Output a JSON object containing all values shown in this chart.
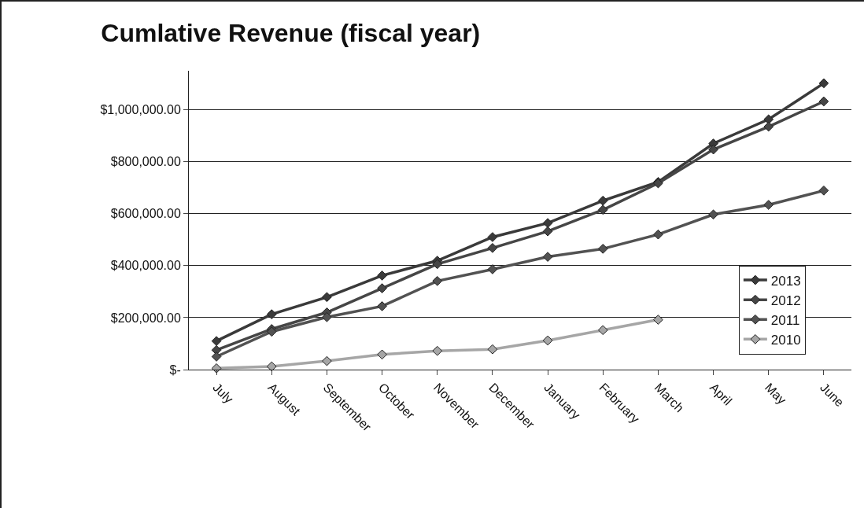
{
  "chart_data": {
    "type": "line",
    "title": "Cumlative Revenue (fiscal year)",
    "categories": [
      "July",
      "August",
      "September",
      "October",
      "November",
      "December",
      "January",
      "February",
      "March",
      "April",
      "May",
      "June"
    ],
    "series": [
      {
        "name": "2013",
        "color": "#3a3a3a",
        "values": [
          110000,
          213000,
          279000,
          362000,
          419000,
          510000,
          564000,
          650000,
          722000,
          870000,
          963000,
          1102000
        ]
      },
      {
        "name": "2012",
        "color": "#464646",
        "values": [
          75000,
          156000,
          220000,
          313000,
          406000,
          468000,
          532000,
          615000,
          717000,
          847000,
          935000,
          1032000
        ]
      },
      {
        "name": "2011",
        "color": "#525252",
        "values": [
          50000,
          146000,
          202000,
          244000,
          341000,
          386000,
          434000,
          465000,
          520000,
          597000,
          634000,
          689000
        ]
      },
      {
        "name": "2010",
        "color": "#a6a6a6",
        "values": [
          5000,
          12000,
          33000,
          58000,
          72000,
          78000,
          112000,
          152000,
          192000,
          null,
          null,
          null
        ]
      }
    ],
    "ylim": [
      0,
      1150000
    ],
    "yticks": [
      {
        "value": 0,
        "label": "$-"
      },
      {
        "value": 200000,
        "label": "$200,000.00"
      },
      {
        "value": 400000,
        "label": "$400,000.00"
      },
      {
        "value": 600000,
        "label": "$600,000.00"
      },
      {
        "value": 800000,
        "label": "$800,000.00"
      },
      {
        "value": 1000000,
        "label": "$1,000,000.00"
      }
    ],
    "grid": "y",
    "legend": "right",
    "marker": "diamond",
    "line_style": "solid"
  }
}
